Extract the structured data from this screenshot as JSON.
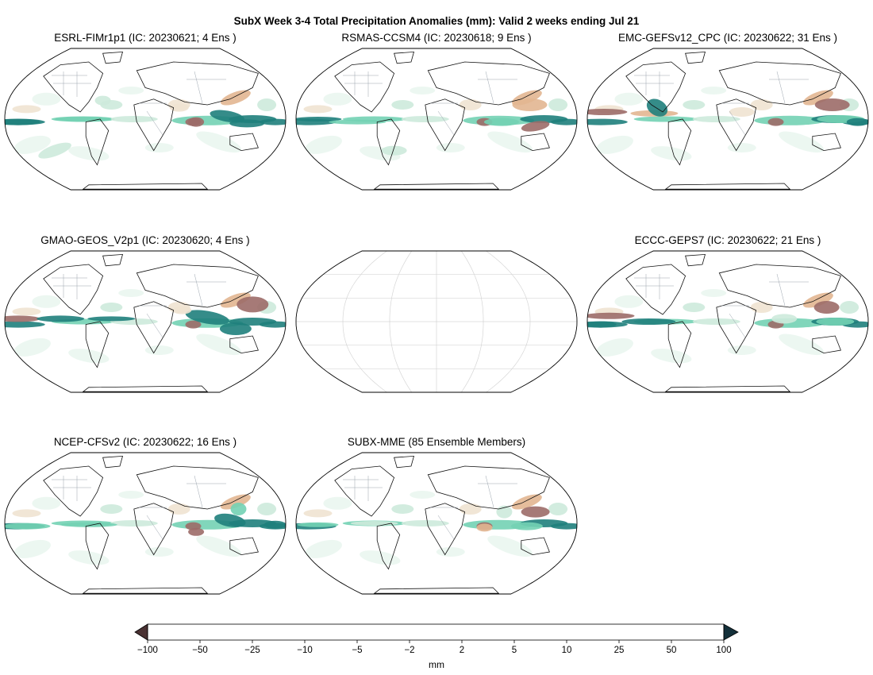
{
  "figure": {
    "title": "SubX Week 3-4 Total Precipitation Anomalies (mm): Valid 2 weeks ending Jul 21"
  },
  "panels": [
    {
      "id": "p1",
      "title": "ESRL-FIMr1p1 (IC: 20230621; 4 Ens )",
      "has_data": true
    },
    {
      "id": "p2",
      "title": "RSMAS-CCSM4 (IC: 20230618; 9 Ens )",
      "has_data": true
    },
    {
      "id": "p3",
      "title": "EMC-GEFSv12_CPC (IC: 20230622; 31 Ens )",
      "has_data": true
    },
    {
      "id": "p4",
      "title": "GMAO-GEOS_V2p1 (IC: 20230620; 4 Ens )",
      "has_data": true
    },
    {
      "id": "p5",
      "title": "",
      "has_data": false
    },
    {
      "id": "p6",
      "title": "ECCC-GEPS7 (IC: 20230622; 21 Ens )",
      "has_data": true
    },
    {
      "id": "p7",
      "title": "NCEP-CFSv2 (IC: 20230622; 16 Ens )",
      "has_data": true
    },
    {
      "id": "p8",
      "title": "SUBX-MME (85 Ensemble Members)",
      "has_data": true
    }
  ],
  "colorbar": {
    "label": "mm",
    "ticks": [
      "−100",
      "−50",
      "−25",
      "−10",
      "−5",
      "−2",
      "2",
      "5",
      "10",
      "25",
      "50",
      "100"
    ],
    "colors": [
      "#9c6b68",
      "#e2b691",
      "#efe3d1",
      "#f6f5ef",
      "#fbfbf8",
      "#ffffff",
      "#fafcfa",
      "#eaf6ef",
      "#cdeadb",
      "#73d2b4",
      "#1f7f7c"
    ],
    "under_color": "#4a3233",
    "over_color": "#14303a"
  },
  "chart_data": {
    "type": "map",
    "projection": "Robinson",
    "variable": "Total Precipitation Anomalies",
    "units": "mm",
    "levels": [
      -100,
      -50,
      -25,
      -10,
      -5,
      -2,
      2,
      5,
      10,
      25,
      50,
      100
    ],
    "colorbar_extend": "both"
  }
}
